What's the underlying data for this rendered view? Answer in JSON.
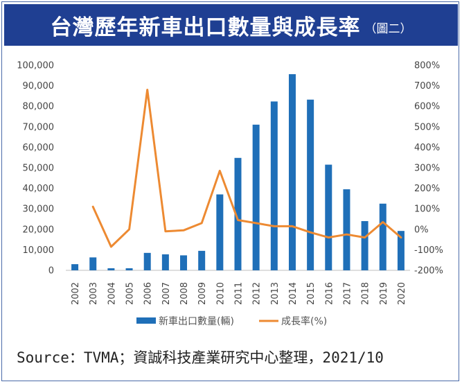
{
  "header": {
    "title": "台灣歷年新車出口數量與成長率",
    "subtitle": "（圖二）"
  },
  "chart_data": {
    "type": "bar",
    "categories": [
      "2002",
      "2003",
      "2004",
      "2005",
      "2006",
      "2007",
      "2008",
      "2009",
      "2010",
      "2011",
      "2012",
      "2013",
      "2014",
      "2015",
      "2016",
      "2017",
      "2018",
      "2019",
      "2020"
    ],
    "series": [
      {
        "name": "新車出口數量(輛)",
        "type": "bar",
        "axis": "left",
        "color": "#1f6fb8",
        "values": [
          3000,
          6300,
          1000,
          1000,
          8500,
          7800,
          7300,
          9500,
          37000,
          54800,
          71000,
          82300,
          95600,
          83200,
          51500,
          39500,
          24000,
          32500,
          19200
        ]
      },
      {
        "name": "成長率(%)",
        "type": "line",
        "axis": "right",
        "color": "#ed8a32",
        "values": [
          null,
          110,
          -85,
          0,
          680,
          -10,
          -5,
          30,
          285,
          45,
          30,
          15,
          15,
          -15,
          -40,
          -25,
          -40,
          35,
          -40
        ]
      }
    ],
    "y_left": {
      "lim": [
        0,
        100000
      ],
      "ticks": [
        "0",
        "10,000",
        "20,000",
        "30,000",
        "40,000",
        "50,000",
        "60,000",
        "70,000",
        "80,000",
        "90,000",
        "100,000"
      ]
    },
    "y_right": {
      "lim": [
        -200,
        800
      ],
      "ticks": [
        "-200%",
        "-100%",
        "0%",
        "100%",
        "200%",
        "300%",
        "400%",
        "500%",
        "600%",
        "700%",
        "800%"
      ]
    },
    "grid": false,
    "legend_position": "bottom"
  },
  "source_text": "Source：TVMA；資誠科技產業研究中心整理，2021/10"
}
